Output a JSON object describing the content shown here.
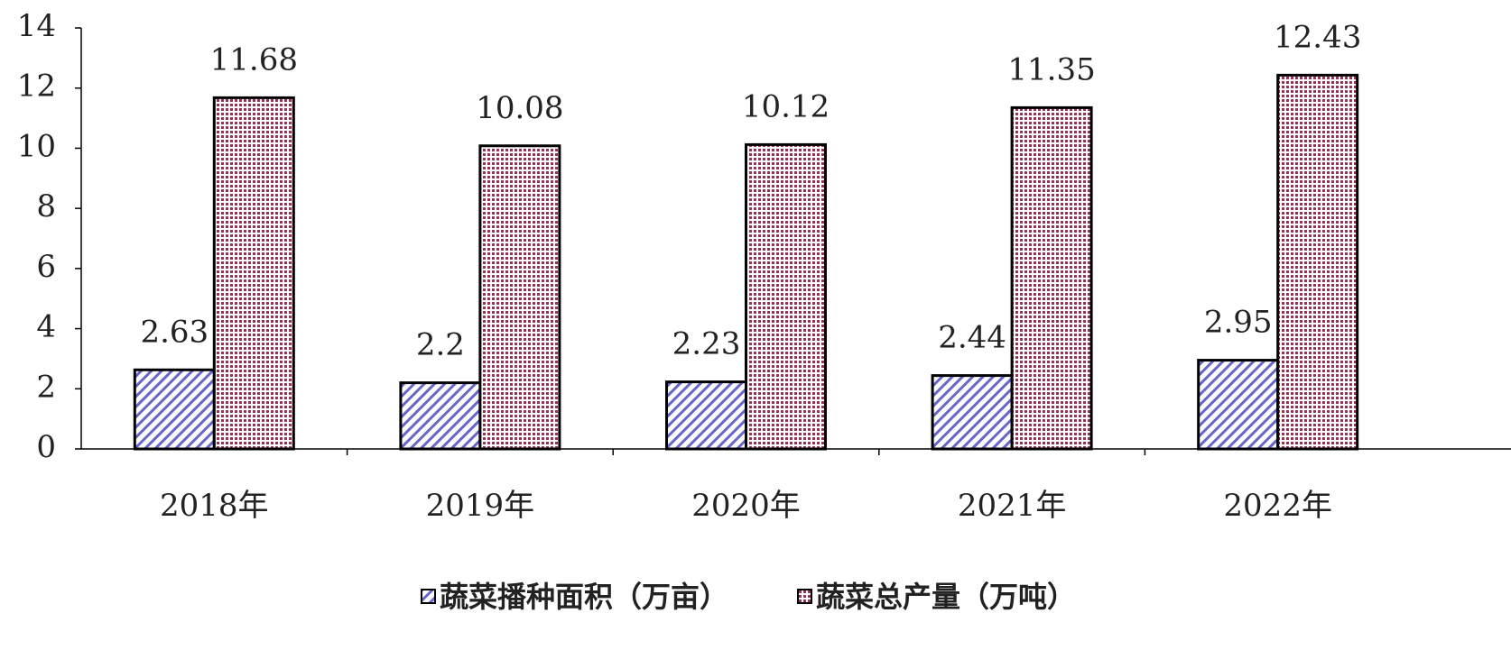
{
  "chart_data": {
    "type": "bar",
    "categories": [
      "2018年",
      "2019年",
      "2020年",
      "2021年",
      "2022年"
    ],
    "series": [
      {
        "name": "蔬菜播种面积（万亩）",
        "color": "#6666cc",
        "values": [
          2.63,
          2.2,
          2.23,
          2.44,
          2.95
        ]
      },
      {
        "name": "蔬菜总产量（万吨）",
        "color": "#993355",
        "values": [
          11.68,
          10.08,
          10.12,
          11.35,
          12.43
        ]
      }
    ],
    "ylim": [
      0,
      14
    ],
    "yticks": [
      0,
      2,
      4,
      6,
      8,
      10,
      12,
      14
    ],
    "legend": "bottom"
  }
}
